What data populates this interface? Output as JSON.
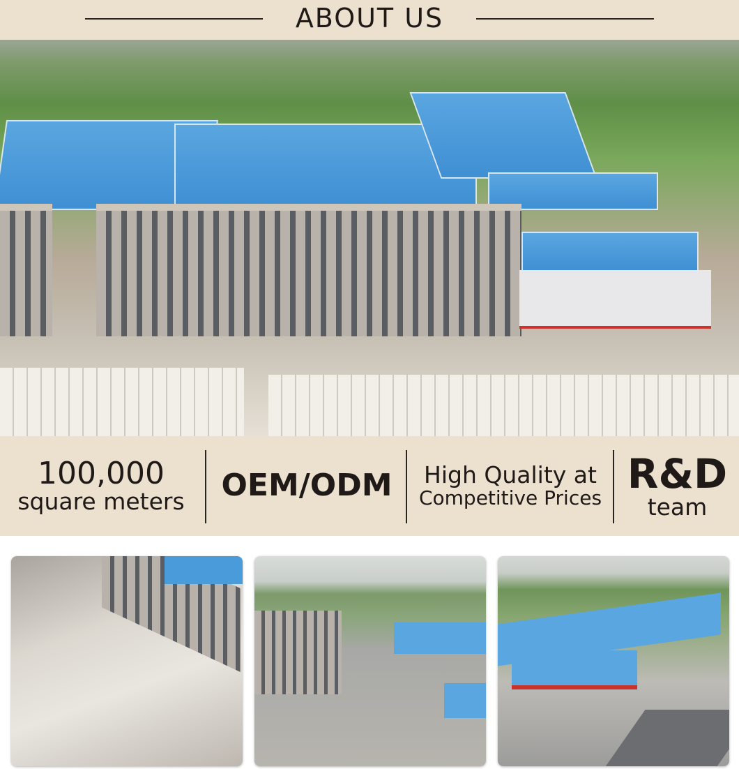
{
  "header": {
    "title": "ABOUT US"
  },
  "hero": {
    "image": "aerial view of factory with blue roofs and stacked blocks"
  },
  "features": [
    {
      "line1": "100,000",
      "line2": "square meters"
    },
    {
      "line1": "OEM/ODM"
    },
    {
      "line1": "High Quality at",
      "line2": "Competitive Prices"
    },
    {
      "line1": "R&D",
      "line2": "team"
    }
  ],
  "gallery": [
    "factory yard with stacked blocks",
    "office building and workshops",
    "factory complex with gas station canopy"
  ],
  "colors": {
    "band": "#ece0cf",
    "text": "#1f1a17",
    "roof": "#4a9bd9"
  }
}
